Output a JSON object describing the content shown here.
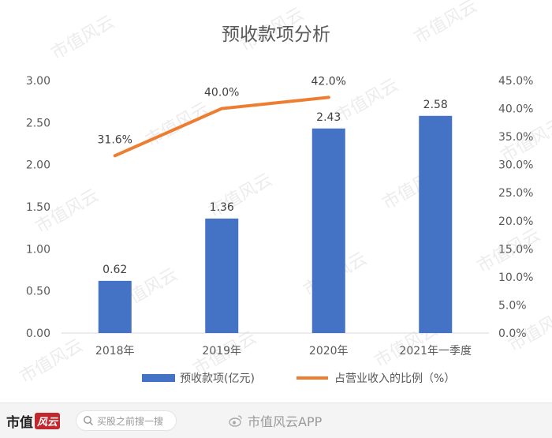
{
  "chart_data": {
    "type": "bar",
    "title": "预收款项分析",
    "categories": [
      "2018年",
      "2019年",
      "2020年",
      "2021年一季度"
    ],
    "series": [
      {
        "name": "预收款项(亿元)",
        "type": "bar",
        "axis": "left",
        "values": [
          0.62,
          1.36,
          2.43,
          2.58
        ],
        "labels": [
          "0.62",
          "1.36",
          "2.43",
          "2.58"
        ],
        "color": "#4472c4"
      },
      {
        "name": "占营业收入的比例（%）",
        "type": "line",
        "axis": "right",
        "values": [
          31.6,
          40.0,
          42.0,
          null
        ],
        "labels": [
          "31.6%",
          "40.0%",
          "42.0%",
          ""
        ],
        "color": "#ed7d31"
      }
    ],
    "y_left": {
      "range": [
        0,
        3
      ],
      "ticks": [
        "0.00",
        "0.50",
        "1.00",
        "1.50",
        "2.00",
        "2.50",
        "3.00"
      ]
    },
    "y_right": {
      "range": [
        0,
        45
      ],
      "ticks": [
        "0.0%",
        "5.0%",
        "10.0%",
        "15.0%",
        "20.0%",
        "25.0%",
        "30.0%",
        "35.0%",
        "40.0%",
        "45.0%"
      ]
    },
    "legend_position": "bottom",
    "grid": false
  },
  "watermark": "市值风云",
  "footer": {
    "logo_text": "市值",
    "logo_seal": "风云",
    "search_placeholder": "买股之前搜一搜",
    "brand_text": "市值风云APP",
    "search_icon": "search-icon",
    "brand_icon": "weibo-icon"
  }
}
